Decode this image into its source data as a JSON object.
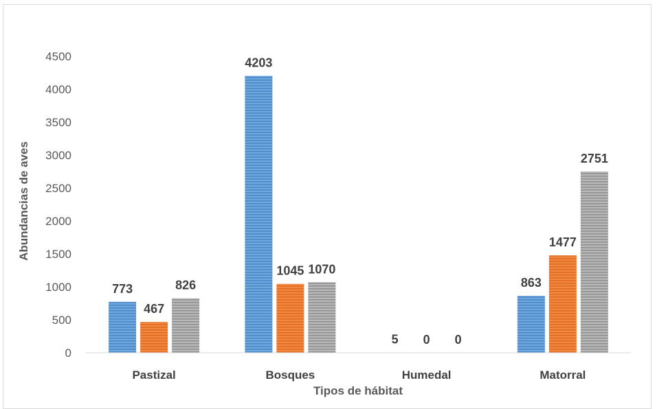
{
  "chart_data": {
    "type": "bar",
    "title": "",
    "xlabel": "Tipos de hábitat",
    "ylabel": "Abundancias de aves",
    "categories": [
      "Pastizal",
      "Bosques",
      "Humedal",
      "Matorral"
    ],
    "series": [
      {
        "values": [
          773,
          4203,
          5,
          863
        ],
        "color": "#5b9bd5"
      },
      {
        "values": [
          467,
          1045,
          0,
          1477
        ],
        "color": "#ed7d31"
      },
      {
        "values": [
          826,
          1070,
          0,
          2751
        ],
        "color": "#a5a5a5"
      }
    ],
    "ylim": [
      0,
      4500
    ],
    "yticks": [
      "0",
      "500",
      "1000",
      "1500",
      "2000",
      "2500",
      "3000",
      "3500",
      "4000",
      "4500"
    ],
    "grid": false,
    "legend": "none"
  }
}
